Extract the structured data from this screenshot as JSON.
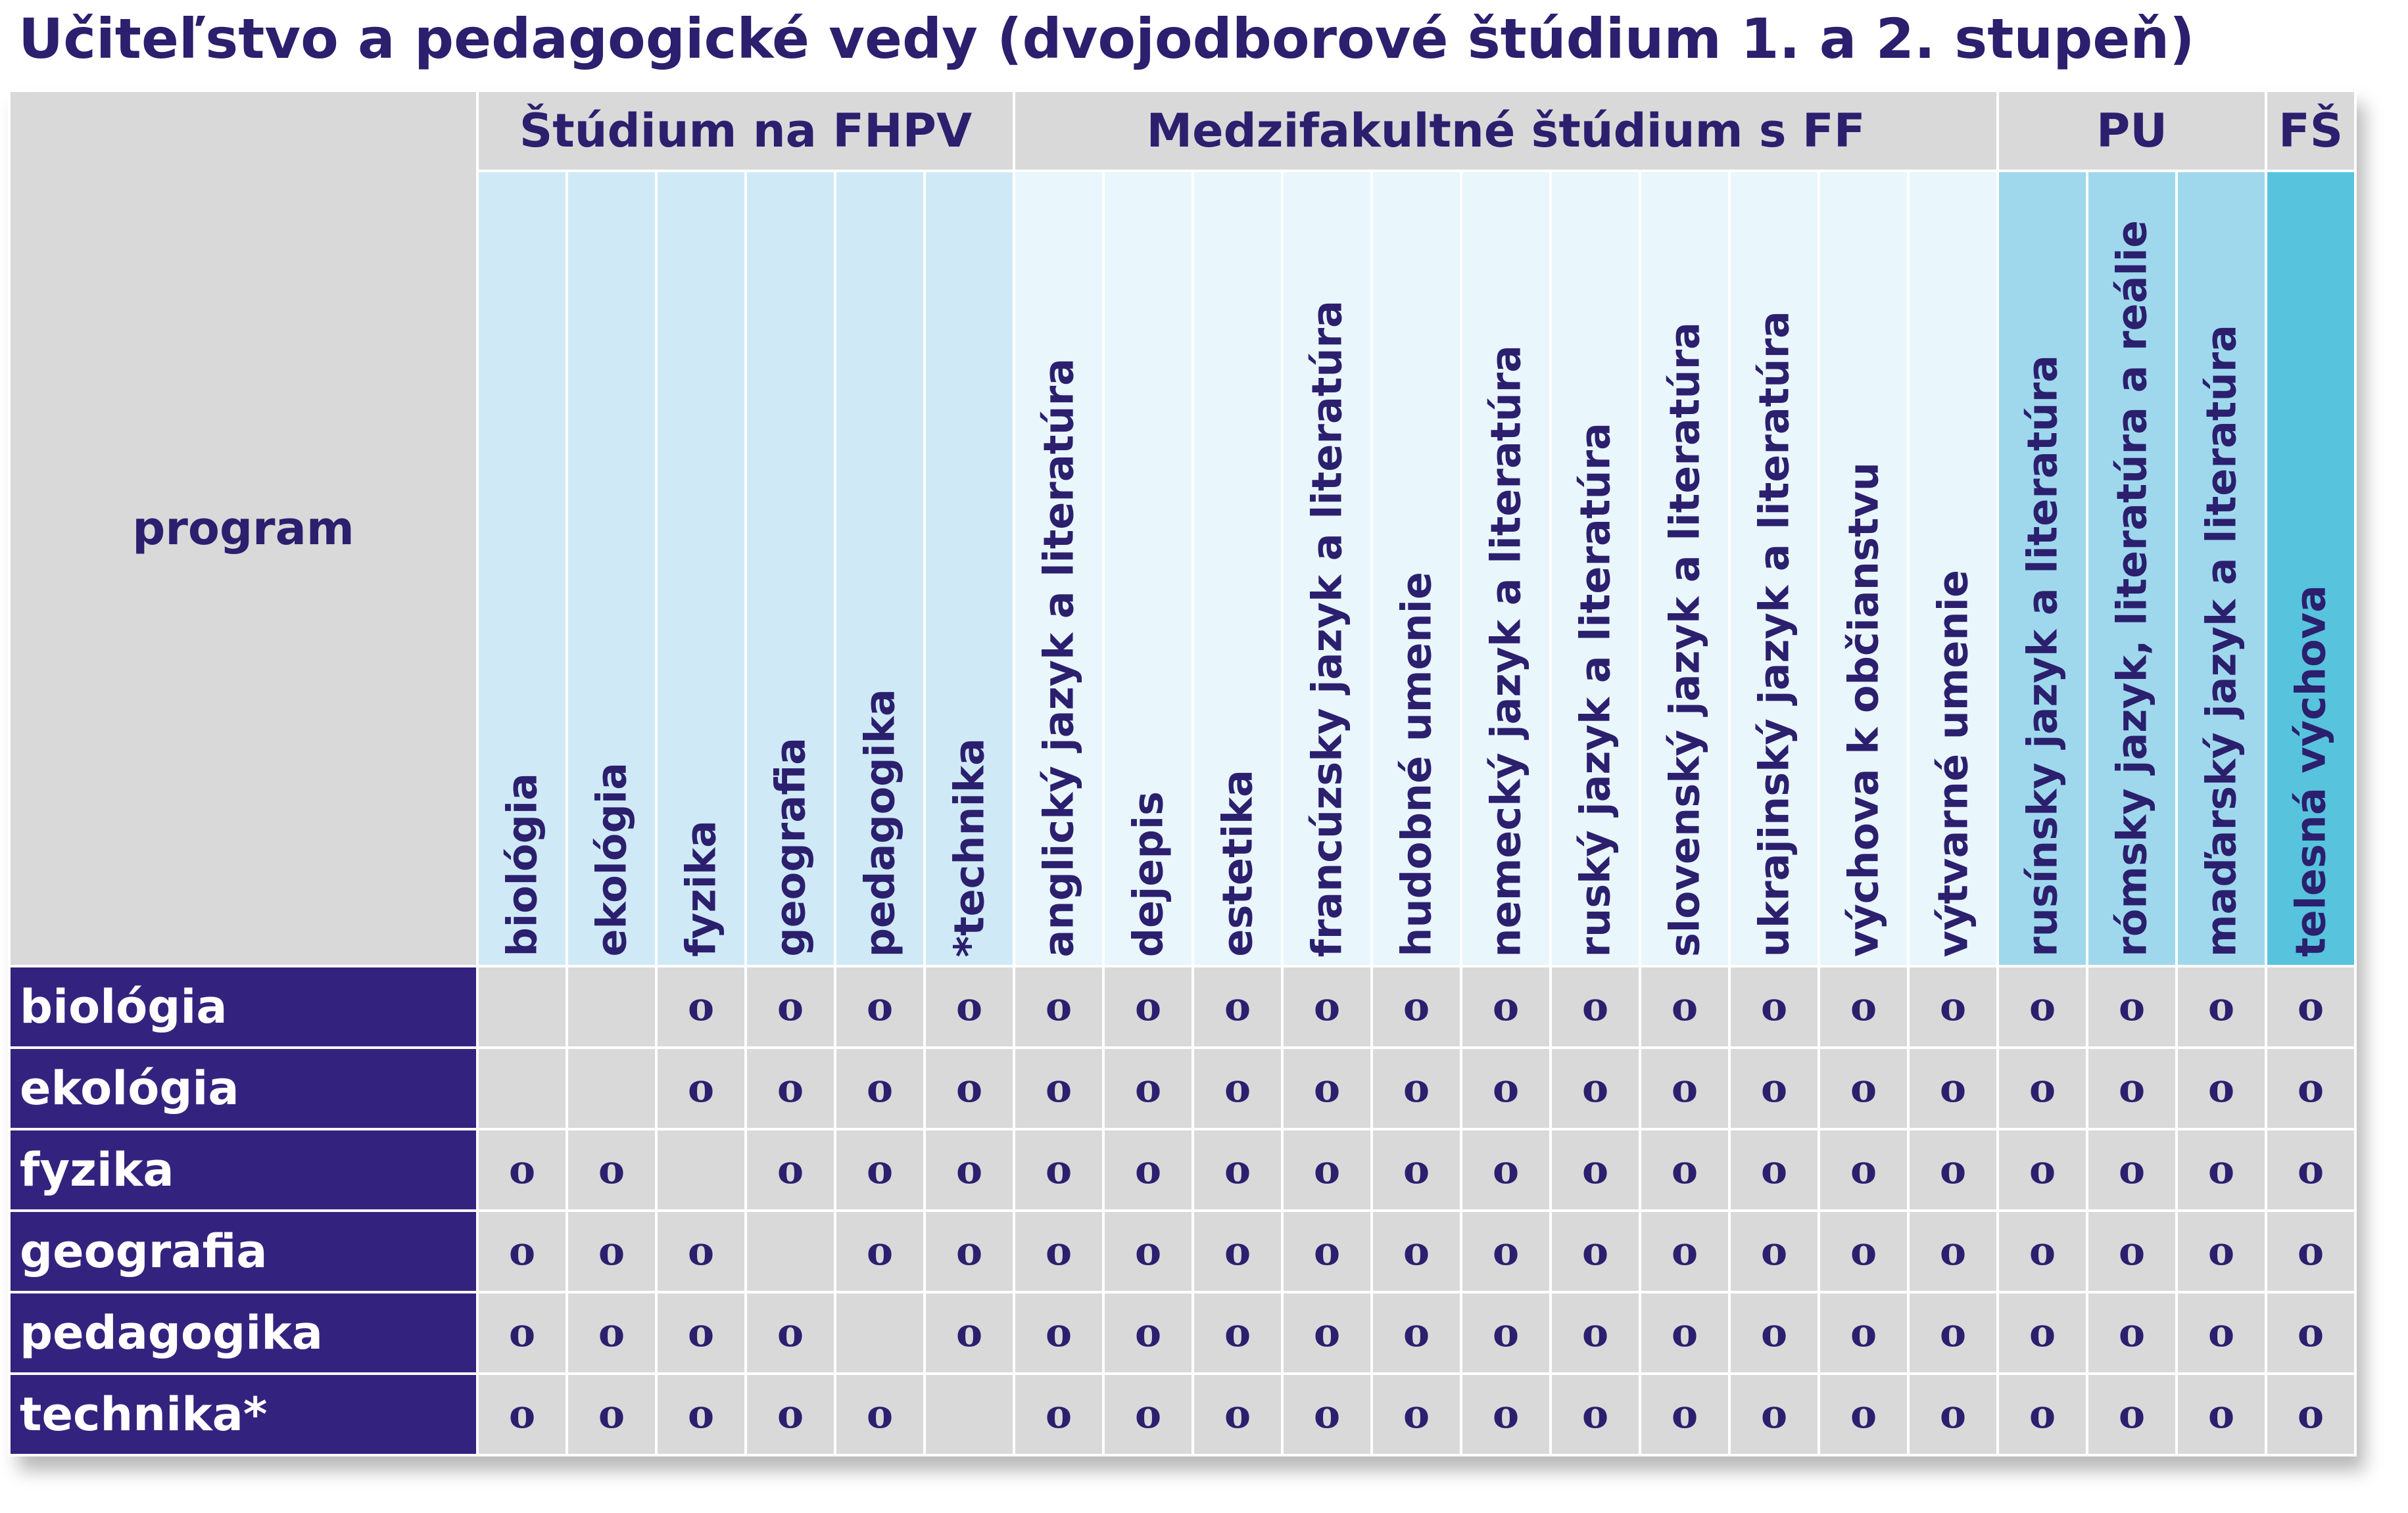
{
  "title": "Učiteľstvo a pedagogické vedy (dvojodborové štúdium 1. a 2. stupeň)",
  "corner_label": "program",
  "groups": [
    {
      "label": "Štúdium na FHPV",
      "span": 6
    },
    {
      "label": "Medzifakultné štúdium s FF",
      "span": 11
    },
    {
      "label": "PU",
      "span": 3
    },
    {
      "label": "FŠ",
      "span": 1
    }
  ],
  "columns": [
    {
      "label": "biológia",
      "group": "fhpv"
    },
    {
      "label": "ekológia",
      "group": "fhpv"
    },
    {
      "label": "fyzika",
      "group": "fhpv"
    },
    {
      "label": "geografia",
      "group": "fhpv"
    },
    {
      "label": "pedagogika",
      "group": "fhpv"
    },
    {
      "label": "*technika",
      "group": "fhpv"
    },
    {
      "label": "anglický jazyk a literatúra",
      "group": "ff"
    },
    {
      "label": "dejepis",
      "group": "ff"
    },
    {
      "label": "estetika",
      "group": "ff"
    },
    {
      "label": "francúzsky jazyk a literatúra",
      "group": "ff"
    },
    {
      "label": "hudobné umenie",
      "group": "ff"
    },
    {
      "label": "nemecký jazyk a literatúra",
      "group": "ff"
    },
    {
      "label": "ruský jazyk a literatúra",
      "group": "ff"
    },
    {
      "label": "slovenský jazyk a literatúra",
      "group": "ff"
    },
    {
      "label": "ukrajinský jazyk a literatúra",
      "group": "ff"
    },
    {
      "label": "výchova k občianstvu",
      "group": "ff"
    },
    {
      "label": "výtvarné umenie",
      "group": "ff"
    },
    {
      "label": "rusínsky jazyk a literatúra",
      "group": "pu"
    },
    {
      "label": "rómsky jazyk, literatúra a reálie",
      "group": "pu"
    },
    {
      "label": "maďarský jazyk a literatúra",
      "group": "pu"
    },
    {
      "label": "telesná výchova",
      "group": "fs"
    }
  ],
  "rows": [
    {
      "label": "biológia",
      "cells": [
        "",
        "",
        "o",
        "o",
        "o",
        "o",
        "o",
        "o",
        "o",
        "o",
        "o",
        "o",
        "o",
        "o",
        "o",
        "o",
        "o",
        "o",
        "o",
        "o",
        "o"
      ]
    },
    {
      "label": "ekológia",
      "cells": [
        "",
        "",
        "o",
        "o",
        "o",
        "o",
        "o",
        "o",
        "o",
        "o",
        "o",
        "o",
        "o",
        "o",
        "o",
        "o",
        "o",
        "o",
        "o",
        "o",
        "o"
      ]
    },
    {
      "label": "fyzika",
      "cells": [
        "o",
        "o",
        "",
        "o",
        "o",
        "o",
        "o",
        "o",
        "o",
        "o",
        "o",
        "o",
        "o",
        "o",
        "o",
        "o",
        "o",
        "o",
        "o",
        "o",
        "o"
      ]
    },
    {
      "label": "geografia",
      "cells": [
        "o",
        "o",
        "o",
        "",
        "o",
        "o",
        "o",
        "o",
        "o",
        "o",
        "o",
        "o",
        "o",
        "o",
        "o",
        "o",
        "o",
        "o",
        "o",
        "o",
        "o"
      ]
    },
    {
      "label": "pedagogika",
      "cells": [
        "o",
        "o",
        "o",
        "o",
        "",
        "o",
        "o",
        "o",
        "o",
        "o",
        "o",
        "o",
        "o",
        "o",
        "o",
        "o",
        "o",
        "o",
        "o",
        "o",
        "o"
      ]
    },
    {
      "label": "technika*",
      "cells": [
        "o",
        "o",
        "o",
        "o",
        "o",
        "",
        "o",
        "o",
        "o",
        "o",
        "o",
        "o",
        "o",
        "o",
        "o",
        "o",
        "o",
        "o",
        "o",
        "o",
        "o"
      ]
    }
  ],
  "colors": {
    "title_text": "#2b1f6e",
    "row_header_bg": "#34237e",
    "cell_bg": "#d9d9d9",
    "fhpv_header_bg": "#cfeaf6",
    "ff_header_bg": "#e9f6fb",
    "pu_header_bg": "#9fd8ec",
    "fs_header_bg": "#58c3dd"
  }
}
